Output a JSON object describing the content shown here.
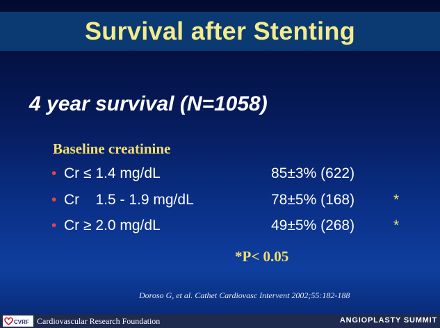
{
  "title": "Survival after Stenting",
  "subtitle": "4 year survival (N=1058)",
  "section_heading": "Baseline creatinine",
  "rows": [
    {
      "bullet": "•",
      "label": "Cr ≤ 1.4 mg/dL",
      "value": "85±3% (622)",
      "sig": ""
    },
    {
      "bullet": "•",
      "label": "Cr    1.5 - 1.9 mg/dL",
      "value": "78±5% (168)",
      "sig": "*"
    },
    {
      "bullet": "•",
      "label": "Cr ≥ 2.0 mg/dL",
      "value": "49±5% (268)",
      "sig": "*"
    }
  ],
  "pvalue_note": "*P< 0.05",
  "citation": "Doroso G, et al. Cathet Cardiovasc Intervent 2002;55:182-188",
  "footer": {
    "logo_text": "CVRF",
    "foundation": "Cardiovascular Research Foundation",
    "summit": "ANGIOPLASTY SUMMIT"
  }
}
